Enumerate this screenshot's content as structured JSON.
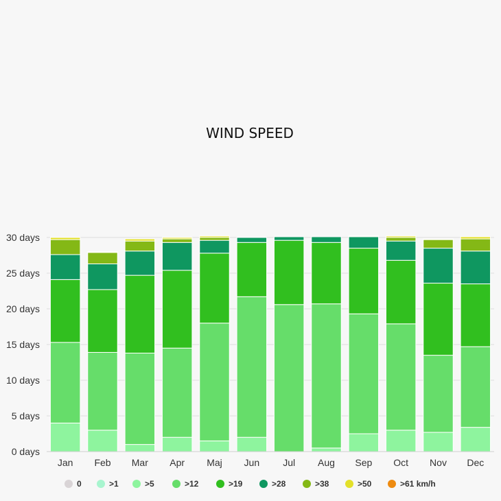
{
  "chart_data": {
    "type": "bar",
    "stacked": true,
    "title": "WIND SPEED",
    "xlabel": "",
    "ylabel": "",
    "ylim": [
      0,
      30
    ],
    "ytick_values": [
      0,
      5,
      10,
      15,
      20,
      25,
      30
    ],
    "ytick_labels": [
      "0 days",
      "5 days",
      "10 days",
      "15 days",
      "20 days",
      "25 days",
      "30 days"
    ],
    "categories": [
      "Jan",
      "Feb",
      "Mar",
      "Apr",
      "Maj",
      "Jun",
      "Jul",
      "Aug",
      "Sep",
      "Oct",
      "Nov",
      "Dec"
    ],
    "grid": true,
    "legend_position": "bottom",
    "series": [
      {
        "name": "0",
        "color": "#d9d4d6",
        "values": [
          0,
          0,
          0,
          0,
          0,
          0,
          0,
          0,
          0,
          0,
          0,
          0
        ]
      },
      {
        "name": ">1",
        "color": "#a8f5cf",
        "values": [
          0,
          0,
          0,
          0,
          0,
          0,
          0,
          0,
          0,
          0,
          0,
          0
        ]
      },
      {
        "name": ">5",
        "color": "#8ef49e",
        "values": [
          4,
          3,
          1,
          2,
          1.5,
          2,
          0,
          0.5,
          2.5,
          3,
          2.7,
          3.4
        ]
      },
      {
        "name": ">12",
        "color": "#66dd6a",
        "values": [
          11.3,
          10.9,
          12.8,
          12.5,
          16.5,
          19.7,
          20.6,
          20.2,
          16.8,
          14.9,
          10.8,
          11.3
        ]
      },
      {
        "name": ">19",
        "color": "#31bf1f",
        "values": [
          8.8,
          8.8,
          10.9,
          10.9,
          9.8,
          7.6,
          9,
          8.6,
          9.2,
          8.9,
          10.1,
          8.8
        ]
      },
      {
        "name": ">28",
        "color": "#0f9760",
        "values": [
          3.5,
          3.6,
          3.4,
          3.9,
          1.8,
          0.7,
          0.5,
          0.8,
          1.6,
          2.7,
          4.9,
          4.6
        ]
      },
      {
        "name": ">38",
        "color": "#84b816",
        "values": [
          2.1,
          1.6,
          1.4,
          0.5,
          0.4,
          0,
          0,
          0,
          0,
          0.5,
          1.2,
          1.7
        ]
      },
      {
        "name": ">50",
        "color": "#e3e02a",
        "values": [
          0.3,
          0.1,
          0.3,
          0.2,
          0.2,
          0,
          0,
          0,
          0.1,
          0.2,
          0.1,
          0.3
        ]
      },
      {
        "name": ">61 km/h",
        "color": "#ee8b10",
        "values": [
          0,
          0,
          0,
          0,
          0,
          0,
          0,
          0,
          0,
          0,
          0,
          0
        ]
      }
    ]
  }
}
